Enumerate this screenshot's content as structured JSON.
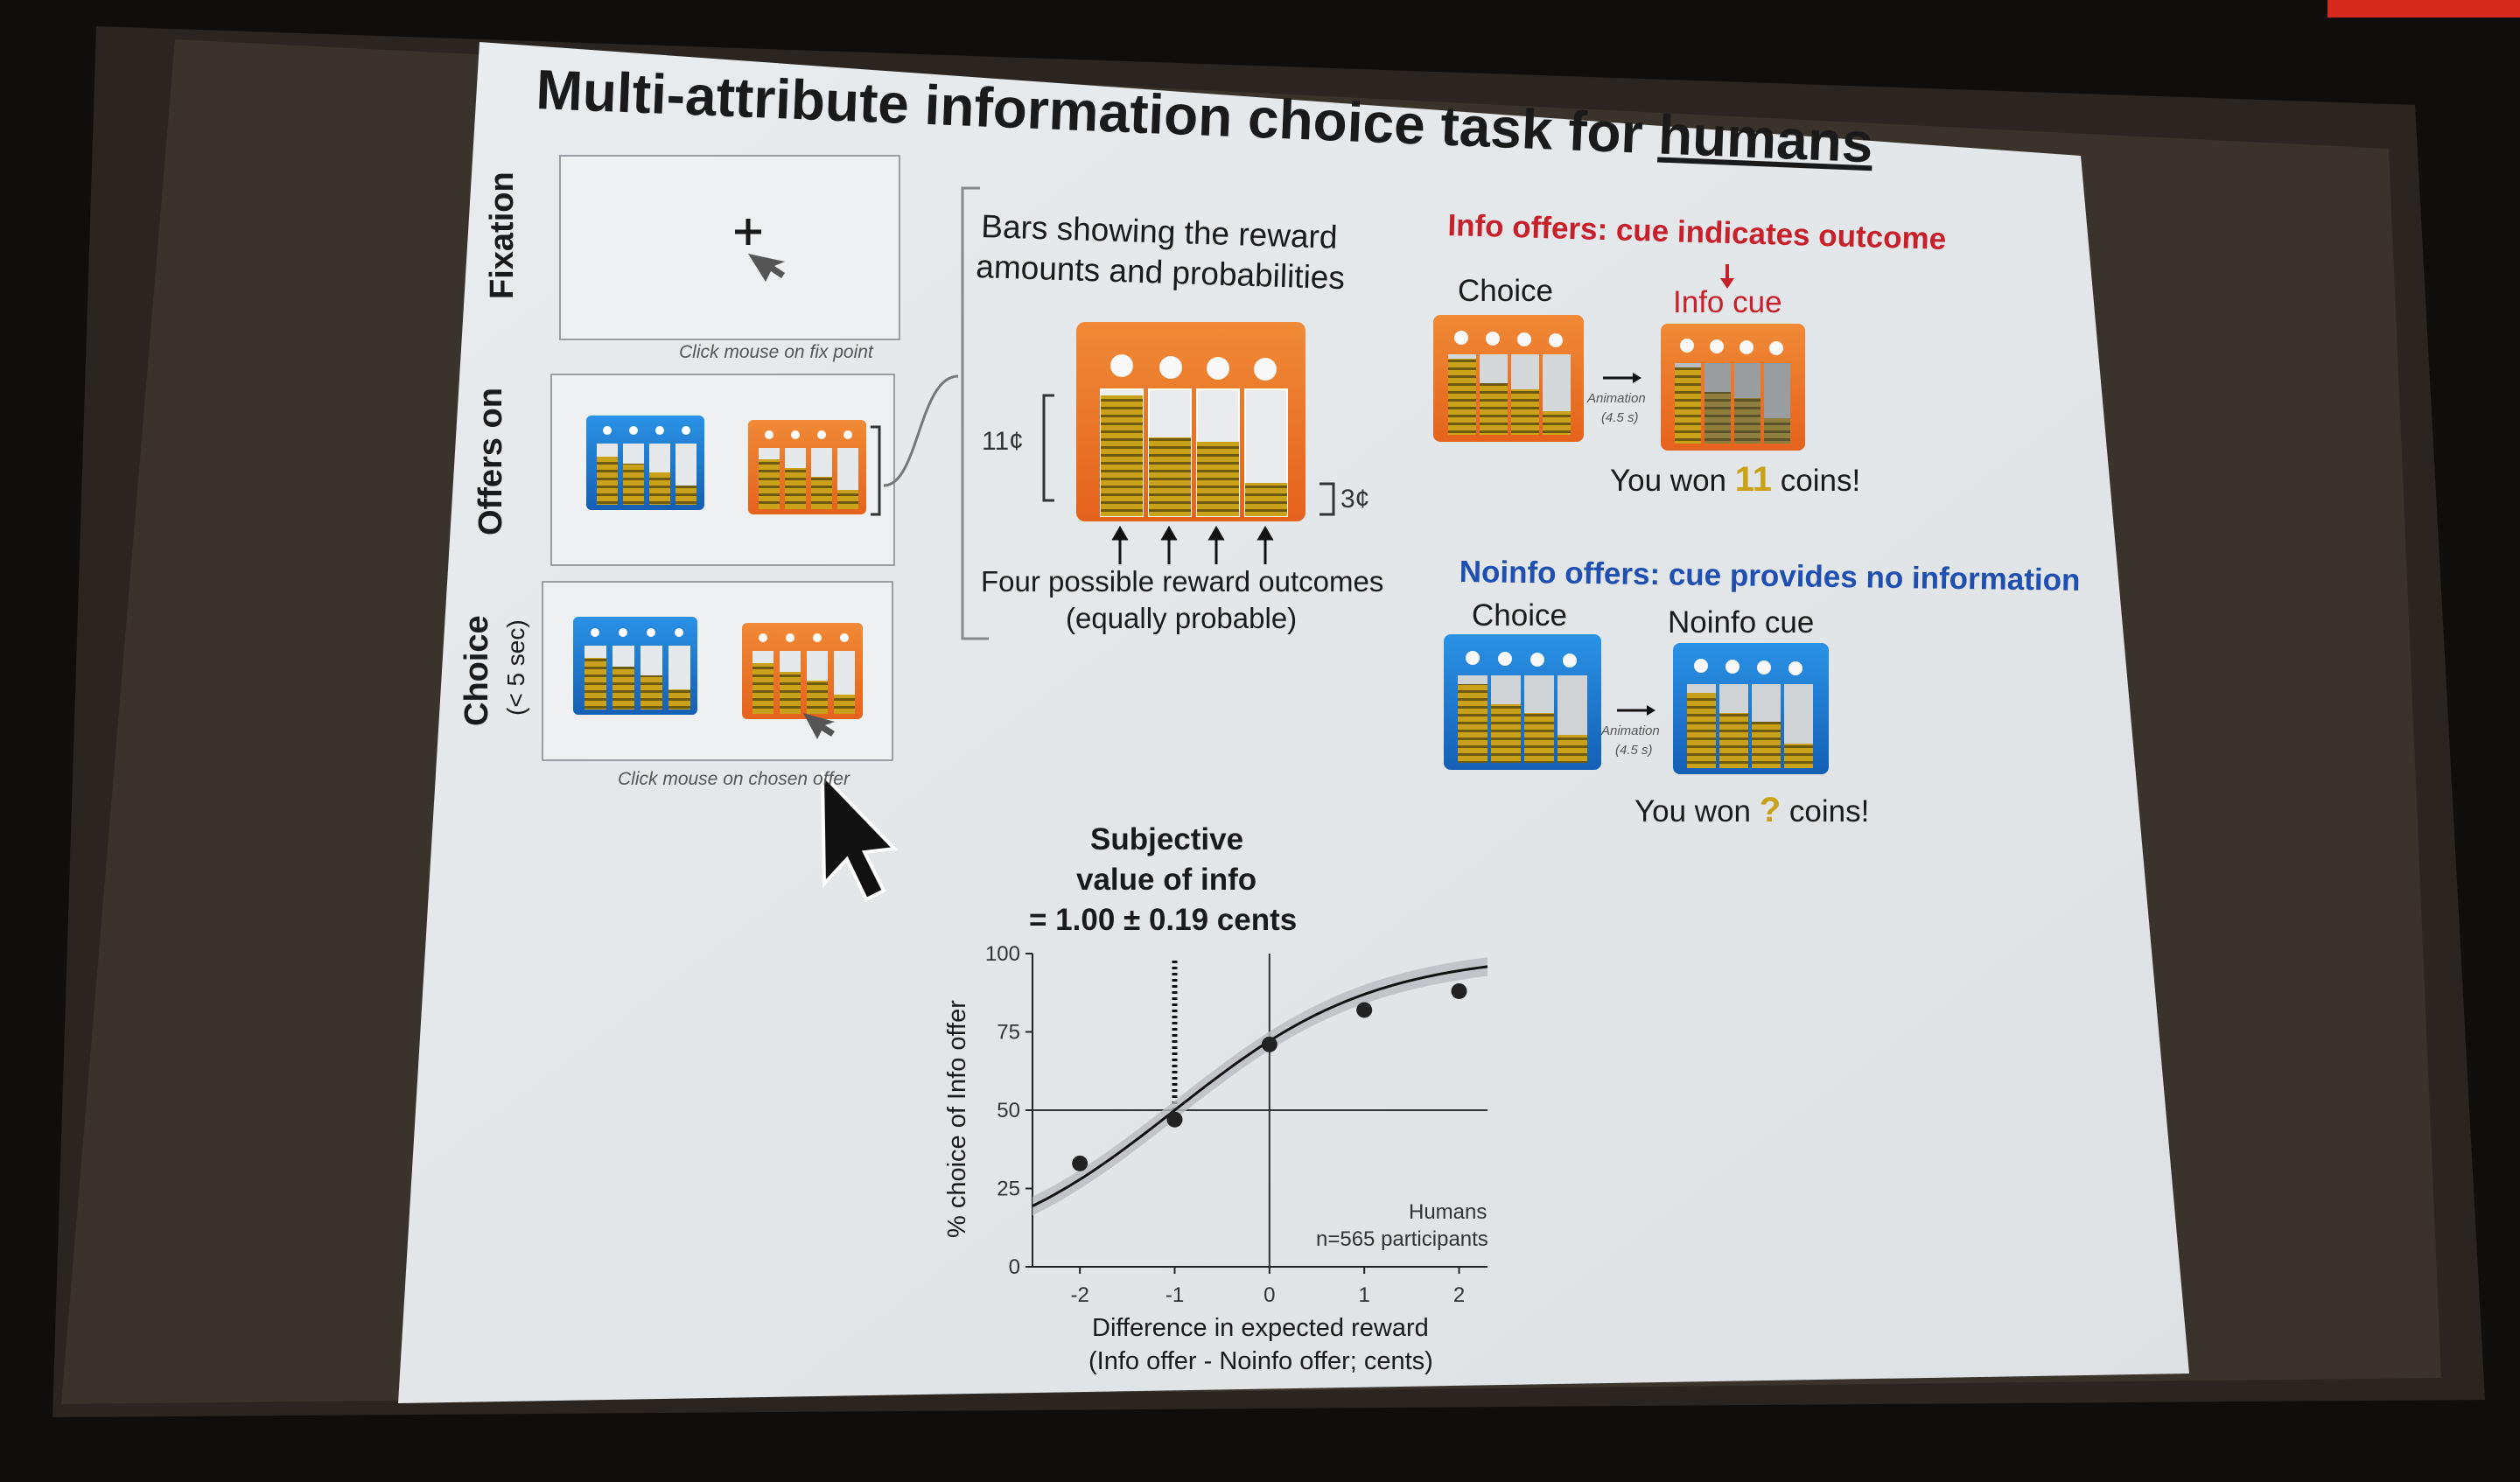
{
  "slide": {
    "title_prefix": "Multi-attribute information choice task for ",
    "title_emph": "humans",
    "fixation_label": "Fixation",
    "offers_on_label": "Offers on",
    "choice_label": "Choice",
    "choice_sublabel": "(< 5 sec)",
    "fixation_caption": "Click mouse on fix point",
    "choice_caption": "Click mouse on chosen offer",
    "bars_caption_line1": "Bars showing the reward",
    "bars_caption_line2": "amounts and probabilities",
    "amount_high": "11¢",
    "amount_low": "3¢",
    "outcomes_line1": "Four possible reward outcomes",
    "outcomes_line2": "(equally probable)",
    "info_heading": "Info offers: cue indicates outcome",
    "info_choice_label": "Choice",
    "info_cue_label": "Info cue",
    "animation_label": "Animation",
    "animation_duration": "(4.5 s)",
    "info_won_prefix": "You won ",
    "info_won_value": "11",
    "won_suffix": " coins!",
    "noinfo_heading": "Noinfo offers: cue provides no information",
    "noinfo_choice_label": "Choice",
    "noinfo_cue_label": "Noinfo cue",
    "noinfo_won_prefix": "You won ",
    "noinfo_won_value": "?",
    "chart_title_line1": "Subjective",
    "chart_title_line2": "value of info",
    "chart_title_line3": "= 1.00 ± 0.19 cents",
    "y_axis_label": "% choice of Info offer",
    "x_axis_label_line1": "Difference in expected reward",
    "x_axis_label_line2": "(Info offer - Noinfo offer; cents)",
    "legend_group": "Humans",
    "legend_n": "n=565 participants"
  },
  "colors": {
    "title_red": "#c8202a",
    "heading_blue": "#1f4fb0",
    "orange_offer": "#ea7d2a",
    "blue_offer": "#1e7fd6",
    "gold_coins": "#c9a21a"
  },
  "chart_data": {
    "type": "scatter",
    "x": [
      -2,
      -1,
      0,
      1,
      2
    ],
    "y": [
      33,
      47,
      71,
      82,
      88
    ],
    "xlim": [
      -2.5,
      2.3
    ],
    "ylim": [
      0,
      100
    ],
    "x_ticks": [
      "-2",
      "-1",
      "0",
      "1",
      "2"
    ],
    "y_ticks": [
      "0",
      "25",
      "50",
      "75",
      "100"
    ],
    "reference_y": 50,
    "reference_x": 0,
    "indifference_x": -1,
    "fit": "sigmoid"
  }
}
